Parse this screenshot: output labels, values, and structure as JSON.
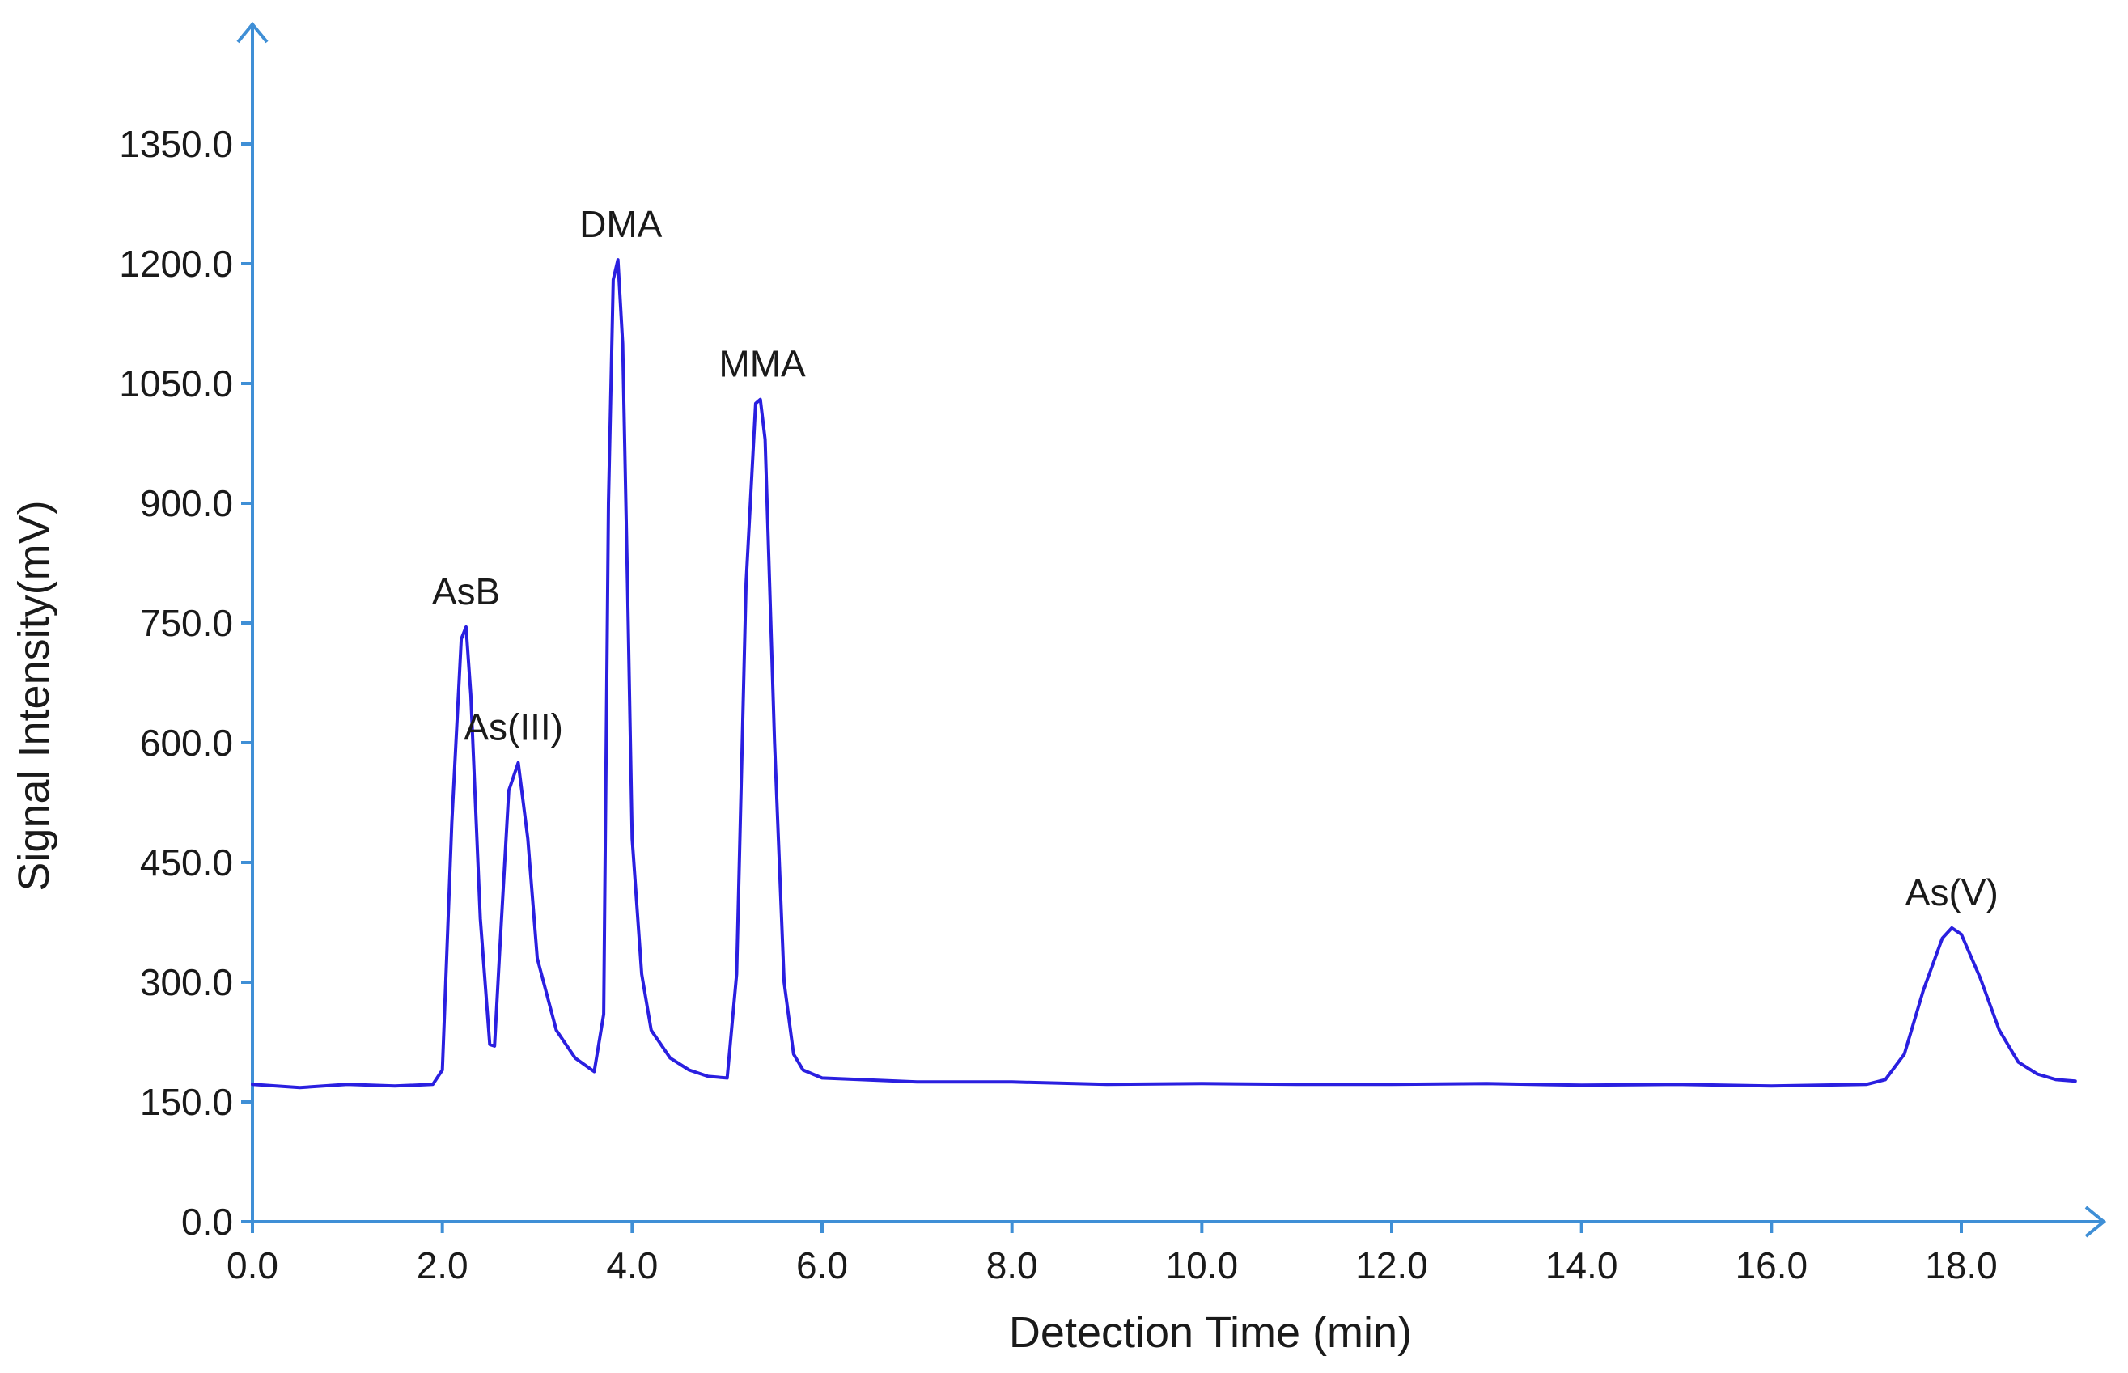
{
  "chart_data": {
    "type": "line",
    "title": "",
    "xlabel": "Detection Time (min)",
    "ylabel": "Signal Intensity(mV)",
    "xlim": [
      0,
      19.5
    ],
    "ylim": [
      0,
      1500
    ],
    "grid": false,
    "x_ticks": [
      "0.0",
      "2.0",
      "4.0",
      "6.0",
      "8.0",
      "10.0",
      "12.0",
      "14.0",
      "16.0",
      "18.0"
    ],
    "y_ticks": [
      "0.0",
      "150.0",
      "300.0",
      "450.0",
      "600.0",
      "750.0",
      "900.0",
      "1050.0",
      "1200.0",
      "1350.0"
    ],
    "line_color": "#2a1fe0",
    "axis_color": "#3f8fd6",
    "series": [
      {
        "x": [
          0.0,
          0.5,
          1.0,
          1.5,
          1.9,
          2.0,
          2.1,
          2.2,
          2.25,
          2.3,
          2.4,
          2.5,
          2.55,
          2.6,
          2.7,
          2.8,
          2.9,
          3.0,
          3.2,
          3.4,
          3.6,
          3.7,
          3.75,
          3.8,
          3.85,
          3.9,
          3.95,
          4.0,
          4.1,
          4.2,
          4.4,
          4.6,
          4.8,
          5.0,
          5.1,
          5.2,
          5.3,
          5.35,
          5.4,
          5.5,
          5.6,
          5.7,
          5.8,
          6.0,
          7.0,
          8.0,
          9.0,
          10.0,
          11.0,
          12.0,
          13.0,
          14.0,
          15.0,
          16.0,
          16.5,
          17.0,
          17.2,
          17.4,
          17.6,
          17.8,
          17.9,
          18.0,
          18.2,
          18.4,
          18.6,
          18.8,
          19.0,
          19.2
        ],
        "y": [
          172,
          168,
          172,
          170,
          172,
          190,
          500,
          730,
          745,
          660,
          380,
          222,
          220,
          330,
          540,
          575,
          480,
          330,
          240,
          205,
          188,
          260,
          900,
          1180,
          1205,
          1100,
          800,
          480,
          310,
          240,
          205,
          190,
          182,
          180,
          310,
          800,
          1025,
          1030,
          980,
          600,
          300,
          210,
          190,
          180,
          175,
          175,
          172,
          173,
          172,
          172,
          173,
          171,
          172,
          170,
          171,
          172,
          178,
          210,
          290,
          355,
          368,
          360,
          305,
          240,
          200,
          185,
          178,
          176
        ]
      }
    ],
    "annotations": [
      {
        "text": "AsB",
        "x": 2.25,
        "y": 745
      },
      {
        "text": "As(III)",
        "x": 2.75,
        "y": 575
      },
      {
        "text": "DMA",
        "x": 3.88,
        "y": 1205
      },
      {
        "text": "MMA",
        "x": 5.37,
        "y": 1030
      },
      {
        "text": "As(V)",
        "x": 17.9,
        "y": 368
      }
    ]
  }
}
